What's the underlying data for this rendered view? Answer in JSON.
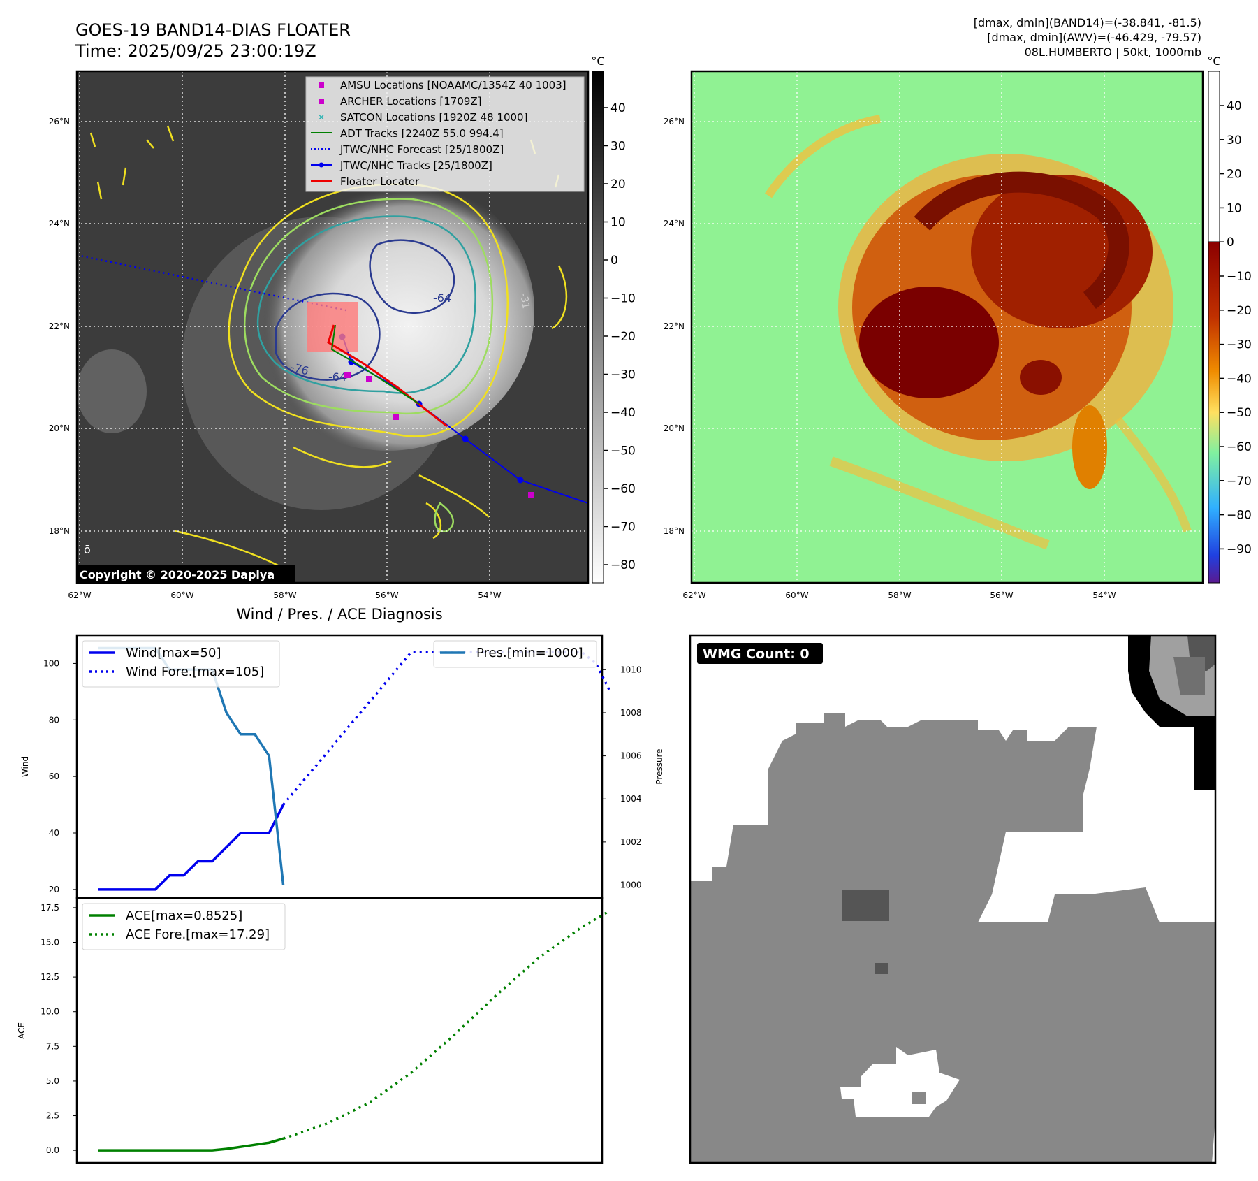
{
  "header": {
    "title": "GOES-19 BAND14-DIAS FLOATER",
    "time": "Time: 2025/09/25 23:00:19Z",
    "dmax_band14": "[dmax, dmin](BAND14)=(-38.841, -81.5)",
    "dmax_awv": "[dmax, dmin](AWV)=(-46.429, -79.57)",
    "storm": "08L.HUMBERTO | 50kt, 1000mb"
  },
  "copyright": "Copyright © 2020-2025 Dapiya",
  "map": {
    "lon_ticks": [
      "62°W",
      "60°W",
      "58°W",
      "56°W",
      "54°W"
    ],
    "lat_ticks": [
      "26°N",
      "24°N",
      "22°N",
      "20°N",
      "18°N"
    ],
    "legend": [
      "AMSU Locations [NOAAMC/1354Z 40 1003]",
      "ARCHER Locations [1709Z]",
      "SATCON Locations [1920Z 48 1000]",
      "ADT Tracks [2240Z 55.0 994.4]",
      "JTWC/NHC Forecast [25/1800Z]",
      "JTWC/NHC Tracks [25/1800Z]",
      "Floater Locater"
    ],
    "contour_labels": [
      "-76",
      "-64",
      "-64",
      "-31"
    ]
  },
  "colorbar_gray": {
    "unit": "°C",
    "ticks": [
      "40",
      "30",
      "20",
      "10",
      "0",
      "−10",
      "−20",
      "−30",
      "−40",
      "−50",
      "−60",
      "−70",
      "−80"
    ]
  },
  "colorbar_awv": {
    "unit": "°C",
    "ticks": [
      "40",
      "30",
      "20",
      "10",
      "0",
      "−10",
      "−20",
      "−30",
      "−40",
      "−50",
      "−60",
      "−70",
      "−80",
      "−90"
    ]
  },
  "diag": {
    "title": "Wind / Pres. / ACE Diagnosis",
    "wind_label": "Wind",
    "pres_label": "Pressure",
    "ace_label": "ACE"
  },
  "wmg": {
    "label": "WMG Count: 0"
  },
  "chart_data": [
    {
      "type": "line",
      "title": "Wind / Pres. / ACE Diagnosis",
      "ylabel": "Wind",
      "ylim": [
        17,
        110
      ],
      "yticks": [
        20,
        40,
        60,
        80,
        100
      ],
      "series": [
        {
          "name": "Wind[max=50]",
          "style": "solid",
          "color": "#0000ee",
          "x": [
            0,
            1,
            2,
            3,
            4,
            5,
            6,
            7,
            8,
            9,
            10,
            11,
            12,
            13
          ],
          "values": [
            20,
            20,
            20,
            20,
            20,
            25,
            25,
            30,
            30,
            35,
            40,
            40,
            40,
            50
          ]
        },
        {
          "name": "Wind Fore.[max=105]",
          "style": "dotted",
          "color": "#0000ee",
          "x": [
            13,
            14,
            15,
            16,
            17,
            18,
            19,
            20,
            21,
            22,
            23,
            24,
            25,
            26,
            27,
            28,
            29,
            30,
            31,
            32,
            33,
            34,
            35,
            36
          ],
          "values": [
            50,
            56,
            62,
            68,
            74,
            80,
            86,
            92,
            98,
            104,
            104,
            104,
            104,
            104,
            104,
            104,
            104,
            104,
            104,
            104,
            104,
            104,
            100,
            90
          ]
        }
      ],
      "y2label": "Pressure",
      "y2lim": [
        999.4,
        1011.6
      ],
      "y2ticks": [
        1000,
        1002,
        1004,
        1006,
        1008,
        1010
      ],
      "series2": [
        {
          "name": "Pres.[min=1000]",
          "color": "#1f77b4",
          "x": [
            0,
            1,
            2,
            3,
            4,
            5,
            6,
            7,
            8,
            9,
            10,
            11,
            12,
            13
          ],
          "values": [
            1011,
            1011,
            1011,
            1011,
            1011,
            1010,
            1010,
            1010,
            1010,
            1008,
            1007,
            1007,
            1006,
            1000
          ]
        }
      ]
    },
    {
      "type": "line",
      "ylabel": "ACE",
      "ylim": [
        -0.9,
        18.2
      ],
      "yticks": [
        0.0,
        2.5,
        5.0,
        7.5,
        10.0,
        12.5,
        15.0,
        17.5
      ],
      "series": [
        {
          "name": "ACE[max=0.8525]",
          "style": "solid",
          "color": "#008000",
          "x": [
            0,
            2,
            4,
            6,
            8,
            9,
            10,
            11,
            12,
            13
          ],
          "values": [
            0,
            0,
            0,
            0,
            0,
            0.1,
            0.25,
            0.4,
            0.55,
            0.85
          ]
        },
        {
          "name": "ACE Fore.[max=17.29]",
          "style": "dotted",
          "color": "#008000",
          "x": [
            13,
            16,
            19,
            22,
            25,
            28,
            31,
            34,
            36
          ],
          "values": [
            0.85,
            1.9,
            3.4,
            5.6,
            8.3,
            11.2,
            13.9,
            16.1,
            17.29
          ]
        }
      ]
    }
  ]
}
